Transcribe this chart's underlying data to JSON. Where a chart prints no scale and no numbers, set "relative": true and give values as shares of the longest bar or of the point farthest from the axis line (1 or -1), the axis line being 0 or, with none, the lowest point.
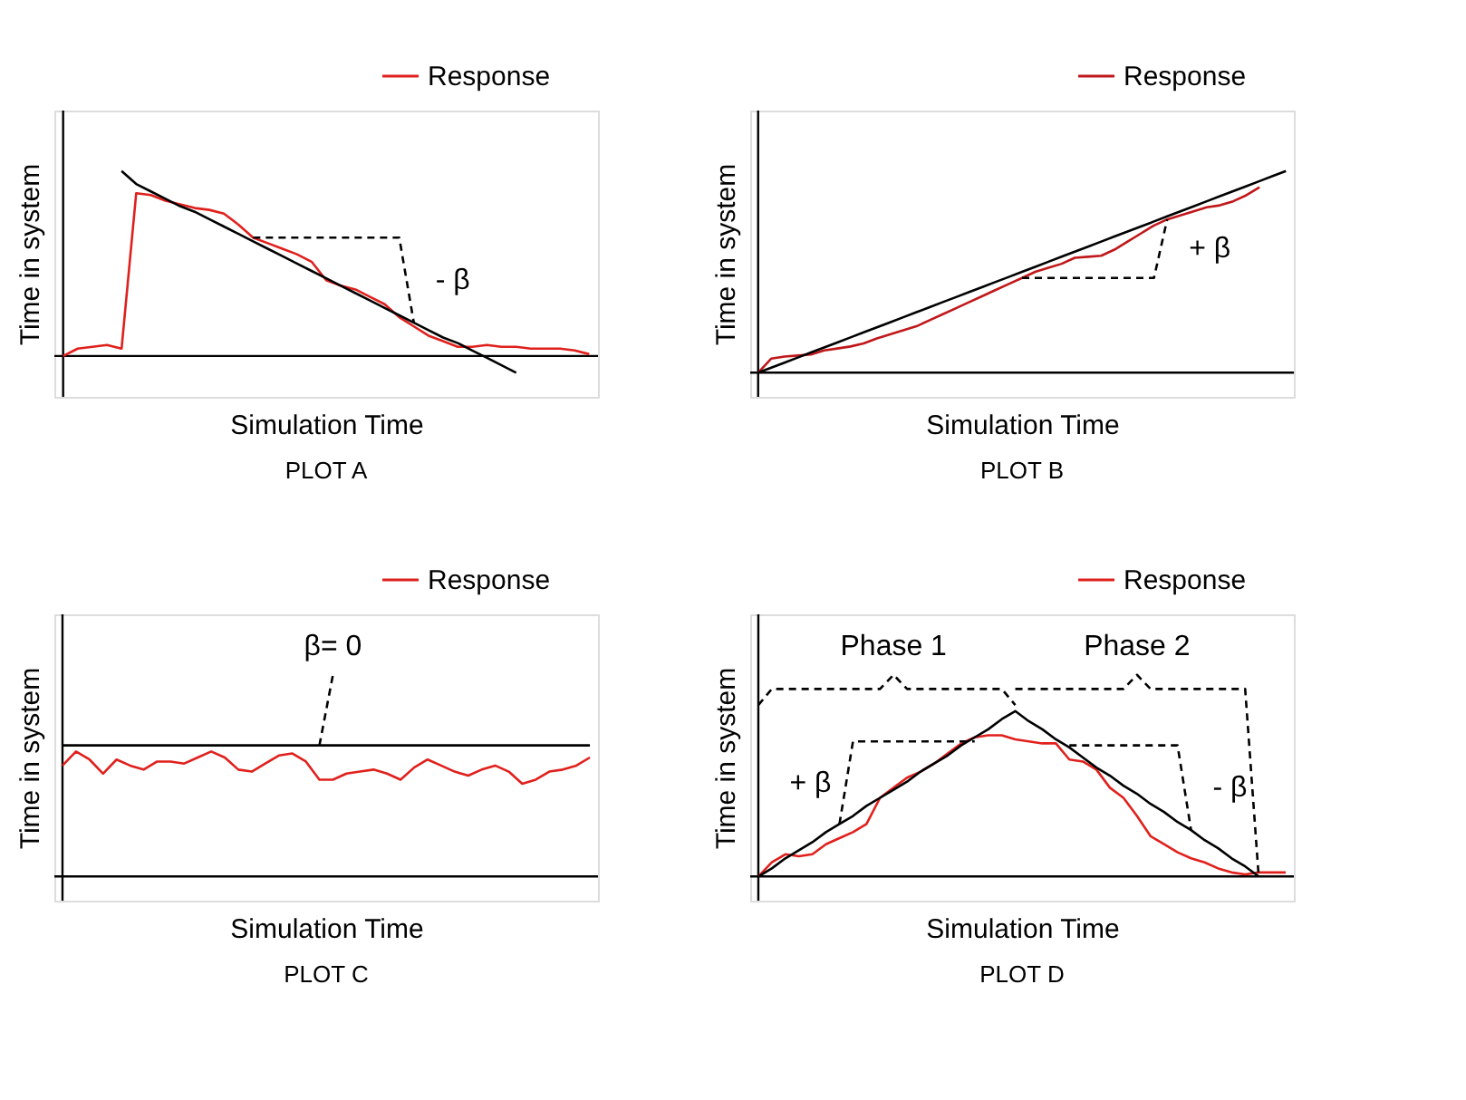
{
  "chart_data": [
    {
      "type": "line",
      "title": "PLOT A",
      "xlabel": "Simulation Time",
      "ylabel": "Time in system",
      "relative": true,
      "tick_labels": false,
      "legend": "top right",
      "categories": [
        null,
        null,
        null,
        null,
        null,
        null,
        null,
        null,
        null,
        null,
        null,
        null,
        null,
        null,
        null,
        null,
        null,
        null,
        null,
        null,
        null,
        null,
        null,
        null,
        null,
        null,
        null,
        null,
        null,
        null,
        null,
        null,
        null,
        null,
        null,
        null,
        null
      ],
      "series": [
        {
          "name": "Response",
          "color": "#e0201c",
          "values": [
            0,
            0.04,
            0.05,
            0.06,
            0.04,
            0.88,
            0.87,
            0.84,
            0.82,
            0.8,
            0.79,
            0.77,
            0.71,
            0.64,
            0.61,
            0.58,
            0.55,
            0.51,
            0.41,
            0.38,
            0.36,
            0.32,
            0.28,
            0.21,
            0.16,
            0.11,
            0.08,
            0.05,
            0.05,
            0.06,
            0.05,
            0.05,
            0.04,
            0.04,
            0.04,
            0.03,
            0.01
          ]
        },
        {
          "color": "#000000",
          "values": [
            null,
            null,
            null,
            null,
            1.0,
            0.93,
            0.89,
            0.85,
            0.81,
            0.78,
            0.74,
            0.7,
            0.66,
            0.62,
            0.58,
            0.54,
            0.5,
            0.46,
            0.42,
            0.38,
            0.34,
            0.3,
            0.26,
            0.22,
            0.18,
            0.14,
            0.1,
            0.07,
            0.03,
            -0.01,
            -0.05,
            -0.09,
            null,
            null,
            null,
            null,
            null
          ]
        },
        {
          "color": "#000000",
          "line_style": "dashed",
          "values": [
            null,
            null,
            null,
            null,
            null,
            null,
            null,
            null,
            null,
            null,
            null,
            null,
            null,
            0.64,
            0.64,
            0.64,
            0.64,
            0.64,
            0.64,
            0.64,
            0.64,
            0.64,
            0.64,
            0.64,
            0.18,
            null,
            null,
            null,
            null,
            null,
            null,
            null,
            null,
            null,
            null,
            null,
            null
          ]
        }
      ],
      "annotations": [
        "- β"
      ]
    },
    {
      "type": "line",
      "title": "PLOT B",
      "xlabel": "Simulation Time",
      "ylabel": "Time in system",
      "relative": true,
      "tick_labels": false,
      "legend": "top right",
      "categories": [
        null,
        null,
        null,
        null,
        null,
        null,
        null,
        null,
        null,
        null,
        null,
        null,
        null,
        null,
        null,
        null,
        null,
        null,
        null,
        null,
        null,
        null,
        null,
        null,
        null,
        null,
        null,
        null,
        null,
        null,
        null,
        null,
        null,
        null,
        null,
        null,
        null,
        null,
        null,
        null,
        null
      ],
      "series": [
        {
          "name": "Response",
          "color": "#c0181a",
          "values": [
            0,
            0.07,
            0.08,
            0.085,
            0.09,
            0.11,
            0.12,
            0.13,
            0.145,
            0.17,
            0.19,
            0.21,
            0.23,
            0.26,
            0.29,
            0.32,
            0.35,
            0.38,
            0.41,
            0.44,
            0.47,
            0.5,
            0.52,
            0.54,
            0.57,
            0.575,
            0.58,
            0.61,
            0.65,
            0.69,
            0.73,
            0.76,
            0.78,
            0.8,
            0.82,
            0.83,
            0.85,
            0.88,
            0.92,
            null,
            null
          ]
        },
        {
          "color": "#000000",
          "values": [
            0,
            0.025,
            0.05,
            0.075,
            0.1,
            0.125,
            0.15,
            0.175,
            0.2,
            0.225,
            0.25,
            0.275,
            0.3,
            0.325,
            0.35,
            0.375,
            0.4,
            0.425,
            0.45,
            0.475,
            0.5,
            0.525,
            0.55,
            0.575,
            0.6,
            0.625,
            0.65,
            0.675,
            0.7,
            0.725,
            0.75,
            0.775,
            0.8,
            0.825,
            0.85,
            0.875,
            0.9,
            0.925,
            0.95,
            0.975,
            1
          ]
        },
        {
          "color": "#000000",
          "line_style": "dashed",
          "values": [
            null,
            null,
            null,
            null,
            null,
            null,
            null,
            null,
            null,
            null,
            null,
            null,
            null,
            null,
            null,
            null,
            null,
            null,
            null,
            null,
            0.47,
            0.47,
            0.47,
            0.47,
            0.47,
            0.47,
            0.47,
            0.47,
            0.47,
            0.47,
            0.47,
            0.76,
            null,
            null,
            null,
            null,
            null,
            null,
            null,
            null,
            null
          ]
        }
      ],
      "annotations": [
        "+   β"
      ]
    },
    {
      "type": "line",
      "title": "PLOT C",
      "xlabel": "Simulation Time",
      "ylabel": "Time in system",
      "relative": true,
      "tick_labels": false,
      "legend": "top right",
      "categories": [
        null,
        null,
        null,
        null,
        null,
        null,
        null,
        null,
        null,
        null,
        null,
        null,
        null,
        null,
        null,
        null,
        null,
        null,
        null,
        null,
        null,
        null,
        null,
        null,
        null,
        null,
        null,
        null,
        null,
        null,
        null,
        null,
        null,
        null,
        null,
        null,
        null,
        null,
        null,
        null
      ],
      "series": [
        {
          "name": "Response",
          "color": "#e0201c",
          "values": [
            0.55,
            0.62,
            0.58,
            0.51,
            0.58,
            0.55,
            0.53,
            0.57,
            0.57,
            0.56,
            0.59,
            0.62,
            0.59,
            0.53,
            0.52,
            0.56,
            0.6,
            0.61,
            0.57,
            0.48,
            0.48,
            0.51,
            0.52,
            0.53,
            0.51,
            0.48,
            0.54,
            0.58,
            0.55,
            0.52,
            0.5,
            0.53,
            0.55,
            0.52,
            0.46,
            0.48,
            0.52,
            0.53,
            0.55,
            0.59
          ]
        },
        {
          "color": "#000000",
          "values": [
            0.65,
            0.65,
            0.65,
            0.65,
            0.65,
            0.65,
            0.65,
            0.65,
            0.65,
            0.65,
            0.65,
            0.65,
            0.65,
            0.65,
            0.65,
            0.65,
            0.65,
            0.65,
            0.65,
            0.65,
            0.65,
            0.65,
            0.65,
            0.65,
            0.65,
            0.65,
            0.65,
            0.65,
            0.65,
            0.65,
            0.65,
            0.65,
            0.65,
            0.65,
            0.65,
            0.65,
            0.65,
            0.65,
            0.65,
            0.65
          ]
        },
        {
          "color": "#000000",
          "line_style": "dashed",
          "values": [
            null,
            null,
            null,
            null,
            null,
            null,
            null,
            null,
            null,
            null,
            null,
            null,
            null,
            null,
            null,
            null,
            null,
            null,
            null,
            0.65,
            1,
            null,
            null,
            null,
            null,
            null,
            null,
            null,
            null,
            null,
            null,
            null,
            null,
            null,
            null,
            null,
            null,
            null,
            null,
            null
          ]
        }
      ],
      "annotations": [
        "β= 0"
      ]
    },
    {
      "type": "line",
      "title": "PLOT D",
      "xlabel": "Simulation Time",
      "ylabel": "Time in system",
      "relative": true,
      "tick_labels": false,
      "legend": "top right",
      "categories": [
        null,
        null,
        null,
        null,
        null,
        null,
        null,
        null,
        null,
        null,
        null,
        null,
        null,
        null,
        null,
        null,
        null,
        null,
        null,
        null,
        null,
        null,
        null,
        null,
        null,
        null,
        null,
        null,
        null,
        null,
        null,
        null,
        null,
        null,
        null,
        null,
        null,
        null,
        null,
        null
      ],
      "series": [
        {
          "name": "Response",
          "color": "#e0201c",
          "values": [
            0,
            0.07,
            0.11,
            0.1,
            0.11,
            0.16,
            0.19,
            0.22,
            0.26,
            0.39,
            0.44,
            0.49,
            0.52,
            0.56,
            0.61,
            0.66,
            0.69,
            0.7,
            0.7,
            0.68,
            0.67,
            0.66,
            0.66,
            0.58,
            0.57,
            0.53,
            0.44,
            0.39,
            0.3,
            0.2,
            0.16,
            0.12,
            0.09,
            0.07,
            0.04,
            0.02,
            0.01,
            0.02,
            0.02,
            0.02
          ]
        },
        {
          "color": "#000000",
          "values": [
            0,
            0.04,
            0.09,
            0.13,
            0.17,
            0.22,
            0.26,
            0.3,
            0.35,
            0.39,
            0.43,
            0.47,
            0.52,
            0.56,
            0.6,
            0.65,
            0.69,
            0.73,
            0.78,
            0.82,
            0.77,
            0.73,
            0.68,
            0.64,
            0.59,
            0.54,
            0.5,
            0.45,
            0.41,
            0.36,
            0.32,
            0.27,
            0.23,
            0.18,
            0.14,
            0.09,
            0.05,
            0,
            null,
            null
          ]
        },
        {
          "color": "#000000",
          "line_style": "dashed",
          "values": [
            null,
            null,
            null,
            null,
            null,
            null,
            0.26,
            0.67,
            0.67,
            0.67,
            0.67,
            0.67,
            0.67,
            0.67,
            0.67,
            0.67,
            0.67,
            null,
            null,
            null,
            null,
            null,
            null,
            null,
            null,
            null,
            null,
            null,
            null,
            null,
            null,
            null,
            null,
            null,
            null,
            null,
            null,
            null,
            null,
            null
          ]
        },
        {
          "color": "#000000",
          "line_style": "dashed",
          "values": [
            null,
            null,
            null,
            null,
            null,
            null,
            null,
            null,
            null,
            null,
            null,
            null,
            null,
            null,
            null,
            null,
            null,
            null,
            null,
            null,
            null,
            null,
            null,
            0.65,
            0.65,
            0.65,
            0.65,
            0.65,
            0.65,
            0.65,
            0.65,
            0.65,
            0.23,
            null,
            null,
            null,
            null,
            null,
            null,
            null
          ]
        },
        {
          "color": "#000000",
          "line_style": "dashed",
          "values": [
            0.85,
            0.93,
            0.93,
            0.93,
            0.93,
            0.93,
            0.93,
            0.93,
            0.93,
            0.93,
            1,
            0.93,
            0.93,
            0.93,
            0.93,
            0.93,
            0.93,
            0.93,
            0.93,
            0.85,
            null,
            null,
            null,
            null,
            null,
            null,
            null,
            null,
            null,
            null,
            null,
            null,
            null,
            null,
            null,
            null,
            null,
            null,
            null,
            null
          ]
        },
        {
          "color": "#000000",
          "line_style": "dashed",
          "values": [
            null,
            null,
            null,
            null,
            null,
            null,
            null,
            null,
            null,
            null,
            null,
            null,
            null,
            null,
            null,
            null,
            null,
            null,
            null,
            0.93,
            0.93,
            0.93,
            0.93,
            0.93,
            0.93,
            0.93,
            0.93,
            0.93,
            1,
            0.93,
            0.93,
            0.93,
            0.93,
            0.93,
            0.93,
            0.93,
            0.93,
            0,
            null,
            null
          ]
        }
      ],
      "annotations": [
        "+ β",
        "- β",
        "Phase 1",
        "Phase 2"
      ]
    }
  ]
}
